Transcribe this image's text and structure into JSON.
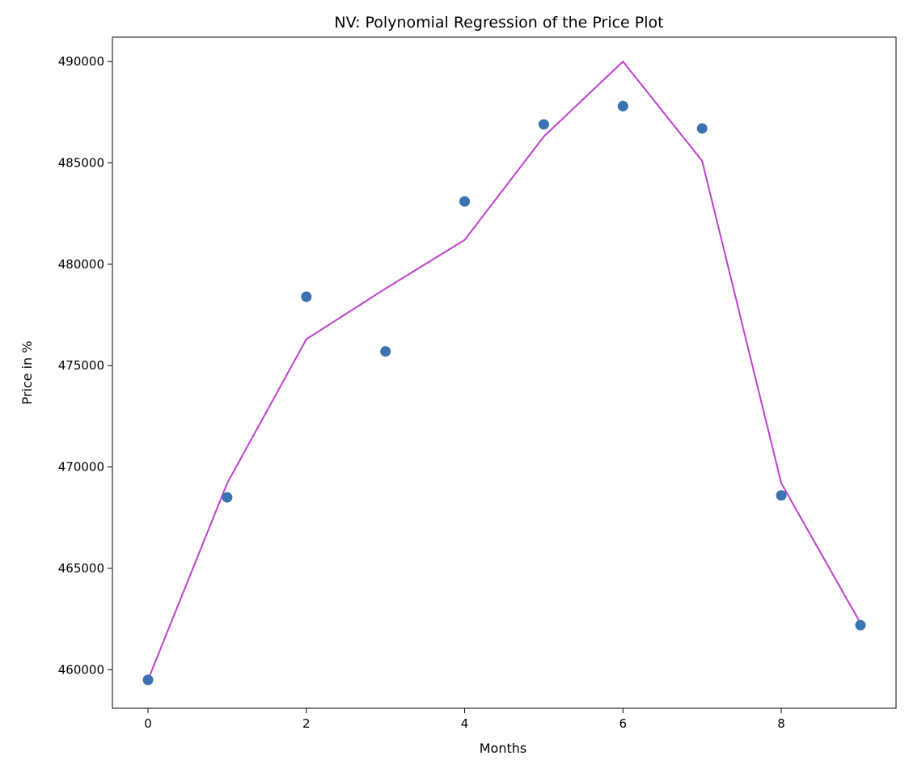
{
  "chart_data": {
    "type": "scatter",
    "title": "NV: Polynomial Regression of the Price Plot",
    "xlabel": "Months",
    "ylabel": "Price in %",
    "xlim": [
      -0.45,
      9.45
    ],
    "ylim": [
      458100,
      491200
    ],
    "x_ticks": [
      0,
      2,
      4,
      6,
      8
    ],
    "y_ticks": [
      460000,
      465000,
      470000,
      475000,
      480000,
      485000,
      490000
    ],
    "grid": false,
    "legend": "none",
    "series": [
      {
        "kind": "scatter",
        "color": "#3a73b0",
        "points": [
          {
            "x": 0,
            "y": 459500
          },
          {
            "x": 1,
            "y": 468500
          },
          {
            "x": 2,
            "y": 478400
          },
          {
            "x": 3,
            "y": 475700
          },
          {
            "x": 4,
            "y": 483100
          },
          {
            "x": 5,
            "y": 486900
          },
          {
            "x": 6,
            "y": 487800
          },
          {
            "x": 7,
            "y": 486700
          },
          {
            "x": 8,
            "y": 468600
          },
          {
            "x": 9,
            "y": 462200
          }
        ]
      },
      {
        "kind": "line",
        "color": "#bf3fcf",
        "points": [
          {
            "x": 0,
            "y": 459500
          },
          {
            "x": 1,
            "y": 469200
          },
          {
            "x": 2,
            "y": 476300
          },
          {
            "x": 3,
            "y": 478800
          },
          {
            "x": 4,
            "y": 481200
          },
          {
            "x": 5,
            "y": 486300
          },
          {
            "x": 6,
            "y": 490000
          },
          {
            "x": 7,
            "y": 485100
          },
          {
            "x": 8,
            "y": 469200
          },
          {
            "x": 9,
            "y": 462300
          }
        ]
      }
    ]
  }
}
